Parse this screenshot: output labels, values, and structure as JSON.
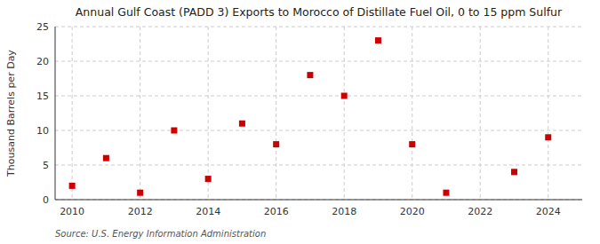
{
  "chart_data": {
    "type": "scatter",
    "title": "Annual Gulf Coast (PADD 3) Exports to Morocco of Distillate Fuel Oil, 0 to 15 ppm Sulfur",
    "ylabel": "Thousand Barrels per Day",
    "annotation": "Source: U.S. Energy Information Administration",
    "x": [
      2010,
      2011,
      2012,
      2013,
      2014,
      2015,
      2016,
      2017,
      2018,
      2019,
      2020,
      2021,
      2022,
      2023,
      2024
    ],
    "values": [
      2,
      6,
      1,
      10,
      3,
      11,
      8,
      18,
      15,
      23,
      8,
      1,
      null,
      4,
      9
    ],
    "color": "#cc0000",
    "marker": "square",
    "xlim": [
      2009.5,
      2025.0
    ],
    "ylim": [
      0,
      25
    ],
    "yticks": [
      0,
      5,
      10,
      15,
      20,
      25
    ],
    "xticks": [
      2010,
      2012,
      2014,
      2016,
      2018,
      2020,
      2022,
      2024
    ],
    "grid": true
  }
}
